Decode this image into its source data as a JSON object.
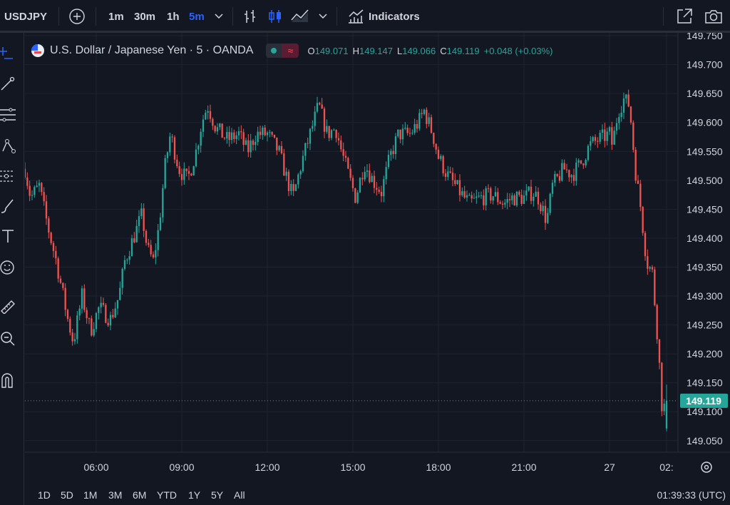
{
  "toolbar": {
    "symbol": "USDJPY",
    "intervals": [
      "1m",
      "30m",
      "1h",
      "5m"
    ],
    "active_interval": "5m",
    "indicators_label": "Indicators",
    "accent": "#2962ff"
  },
  "legend": {
    "title": "U.S. Dollar / Japanese Yen · 5 · OANDA",
    "o_label": "O",
    "o": "149.071",
    "h_label": "H",
    "h": "149.147",
    "l_label": "L",
    "l": "149.066",
    "c_label": "C",
    "c": "149.119",
    "change": "+0.048 (+0.03%)"
  },
  "price_axis": {
    "ticks": [
      "149.750",
      "149.700",
      "149.650",
      "149.600",
      "149.550",
      "149.500",
      "149.450",
      "149.400",
      "149.350",
      "149.300",
      "149.250",
      "149.200",
      "149.150",
      "149.100",
      "149.050"
    ],
    "current_price": "149.119",
    "current_value": 149.119
  },
  "time_axis": {
    "labels": [
      "06:00",
      "09:00",
      "12:00",
      "15:00",
      "18:00",
      "21:00",
      "27",
      "02:"
    ]
  },
  "bottom": {
    "ranges": [
      "1D",
      "5D",
      "1M",
      "3M",
      "6M",
      "YTD",
      "1Y",
      "5Y",
      "All"
    ],
    "clock": "01:39:33 (UTC)"
  },
  "colors": {
    "up": "#26a69a",
    "down": "#ef5350",
    "background": "#131722",
    "grid": "#1f2330"
  },
  "icons": [
    "plus-circle-icon",
    "bar-style-icon",
    "candles-icon",
    "area-chart-icon",
    "chevron-down-icon",
    "indicators-icon",
    "fullscreen-icon",
    "camera-icon",
    "crosshair-icon",
    "trendline-icon",
    "fib-icon",
    "pattern-icon",
    "forecast-icon",
    "brush-icon",
    "text-icon",
    "emoji-icon",
    "ruler-icon",
    "zoom-icon",
    "magnet-icon",
    "settings-icon"
  ],
  "chart_data": {
    "type": "candlestick",
    "symbol": "USDJPY",
    "interval": "5m",
    "ylim": [
      149.03,
      149.755
    ],
    "x_range": [
      3.5,
      26.4
    ],
    "x_ticks": [
      {
        "label": "06:00",
        "hour": 6
      },
      {
        "label": "09:00",
        "hour": 9
      },
      {
        "label": "12:00",
        "hour": 12
      },
      {
        "label": "15:00",
        "hour": 15
      },
      {
        "label": "18:00",
        "hour": 18
      },
      {
        "label": "21:00",
        "hour": 21
      },
      {
        "label": "27",
        "hour": 24
      },
      {
        "label": "02:",
        "hour": 26
      }
    ],
    "path": [
      [
        3.5,
        149.52
      ],
      [
        3.7,
        149.47
      ],
      [
        4.0,
        149.49
      ],
      [
        4.3,
        149.42
      ],
      [
        4.6,
        149.36
      ],
      [
        5.0,
        149.26
      ],
      [
        5.2,
        149.22
      ],
      [
        5.5,
        149.3
      ],
      [
        5.8,
        149.24
      ],
      [
        6.1,
        149.28
      ],
      [
        6.5,
        149.26
      ],
      [
        6.8,
        149.3
      ],
      [
        7.0,
        149.36
      ],
      [
        7.3,
        149.4
      ],
      [
        7.6,
        149.44
      ],
      [
        7.8,
        149.38
      ],
      [
        8.0,
        149.36
      ],
      [
        8.2,
        149.42
      ],
      [
        8.4,
        149.52
      ],
      [
        8.6,
        149.58
      ],
      [
        8.9,
        149.52
      ],
      [
        9.2,
        149.5
      ],
      [
        9.5,
        149.55
      ],
      [
        9.7,
        149.6
      ],
      [
        9.9,
        149.63
      ],
      [
        10.2,
        149.59
      ],
      [
        10.6,
        149.57
      ],
      [
        11.0,
        149.58
      ],
      [
        11.3,
        149.55
      ],
      [
        11.6,
        149.58
      ],
      [
        12.0,
        149.58
      ],
      [
        12.4,
        149.55
      ],
      [
        12.7,
        149.5
      ],
      [
        12.9,
        149.47
      ],
      [
        13.2,
        149.53
      ],
      [
        13.5,
        149.58
      ],
      [
        13.8,
        149.63
      ],
      [
        14.1,
        149.58
      ],
      [
        14.4,
        149.59
      ],
      [
        14.6,
        149.55
      ],
      [
        14.9,
        149.5
      ],
      [
        15.1,
        149.47
      ],
      [
        15.4,
        149.53
      ],
      [
        15.7,
        149.5
      ],
      [
        16.0,
        149.48
      ],
      [
        16.3,
        149.54
      ],
      [
        16.6,
        149.58
      ],
      [
        17.0,
        149.58
      ],
      [
        17.3,
        149.6
      ],
      [
        17.5,
        149.62
      ],
      [
        17.8,
        149.58
      ],
      [
        18.0,
        149.54
      ],
      [
        18.3,
        149.51
      ],
      [
        18.6,
        149.49
      ],
      [
        18.9,
        149.47
      ],
      [
        19.1,
        149.46
      ],
      [
        19.5,
        149.47
      ],
      [
        19.9,
        149.475
      ],
      [
        20.3,
        149.46
      ],
      [
        20.6,
        149.47
      ],
      [
        21.0,
        149.47
      ],
      [
        21.3,
        149.48
      ],
      [
        21.5,
        149.47
      ],
      [
        21.8,
        149.43
      ],
      [
        22.0,
        149.49
      ],
      [
        22.4,
        149.52
      ],
      [
        22.7,
        149.51
      ],
      [
        23.0,
        149.53
      ],
      [
        23.3,
        149.56
      ],
      [
        23.6,
        149.57
      ],
      [
        24.0,
        149.58
      ],
      [
        24.1,
        149.56
      ],
      [
        24.3,
        149.62
      ],
      [
        24.5,
        149.64
      ],
      [
        24.7,
        149.63
      ],
      [
        24.9,
        149.52
      ],
      [
        25.1,
        149.45
      ],
      [
        25.3,
        149.36
      ],
      [
        25.5,
        149.34
      ],
      [
        25.7,
        149.22
      ],
      [
        25.85,
        149.1
      ],
      [
        26.0,
        149.119
      ]
    ]
  }
}
